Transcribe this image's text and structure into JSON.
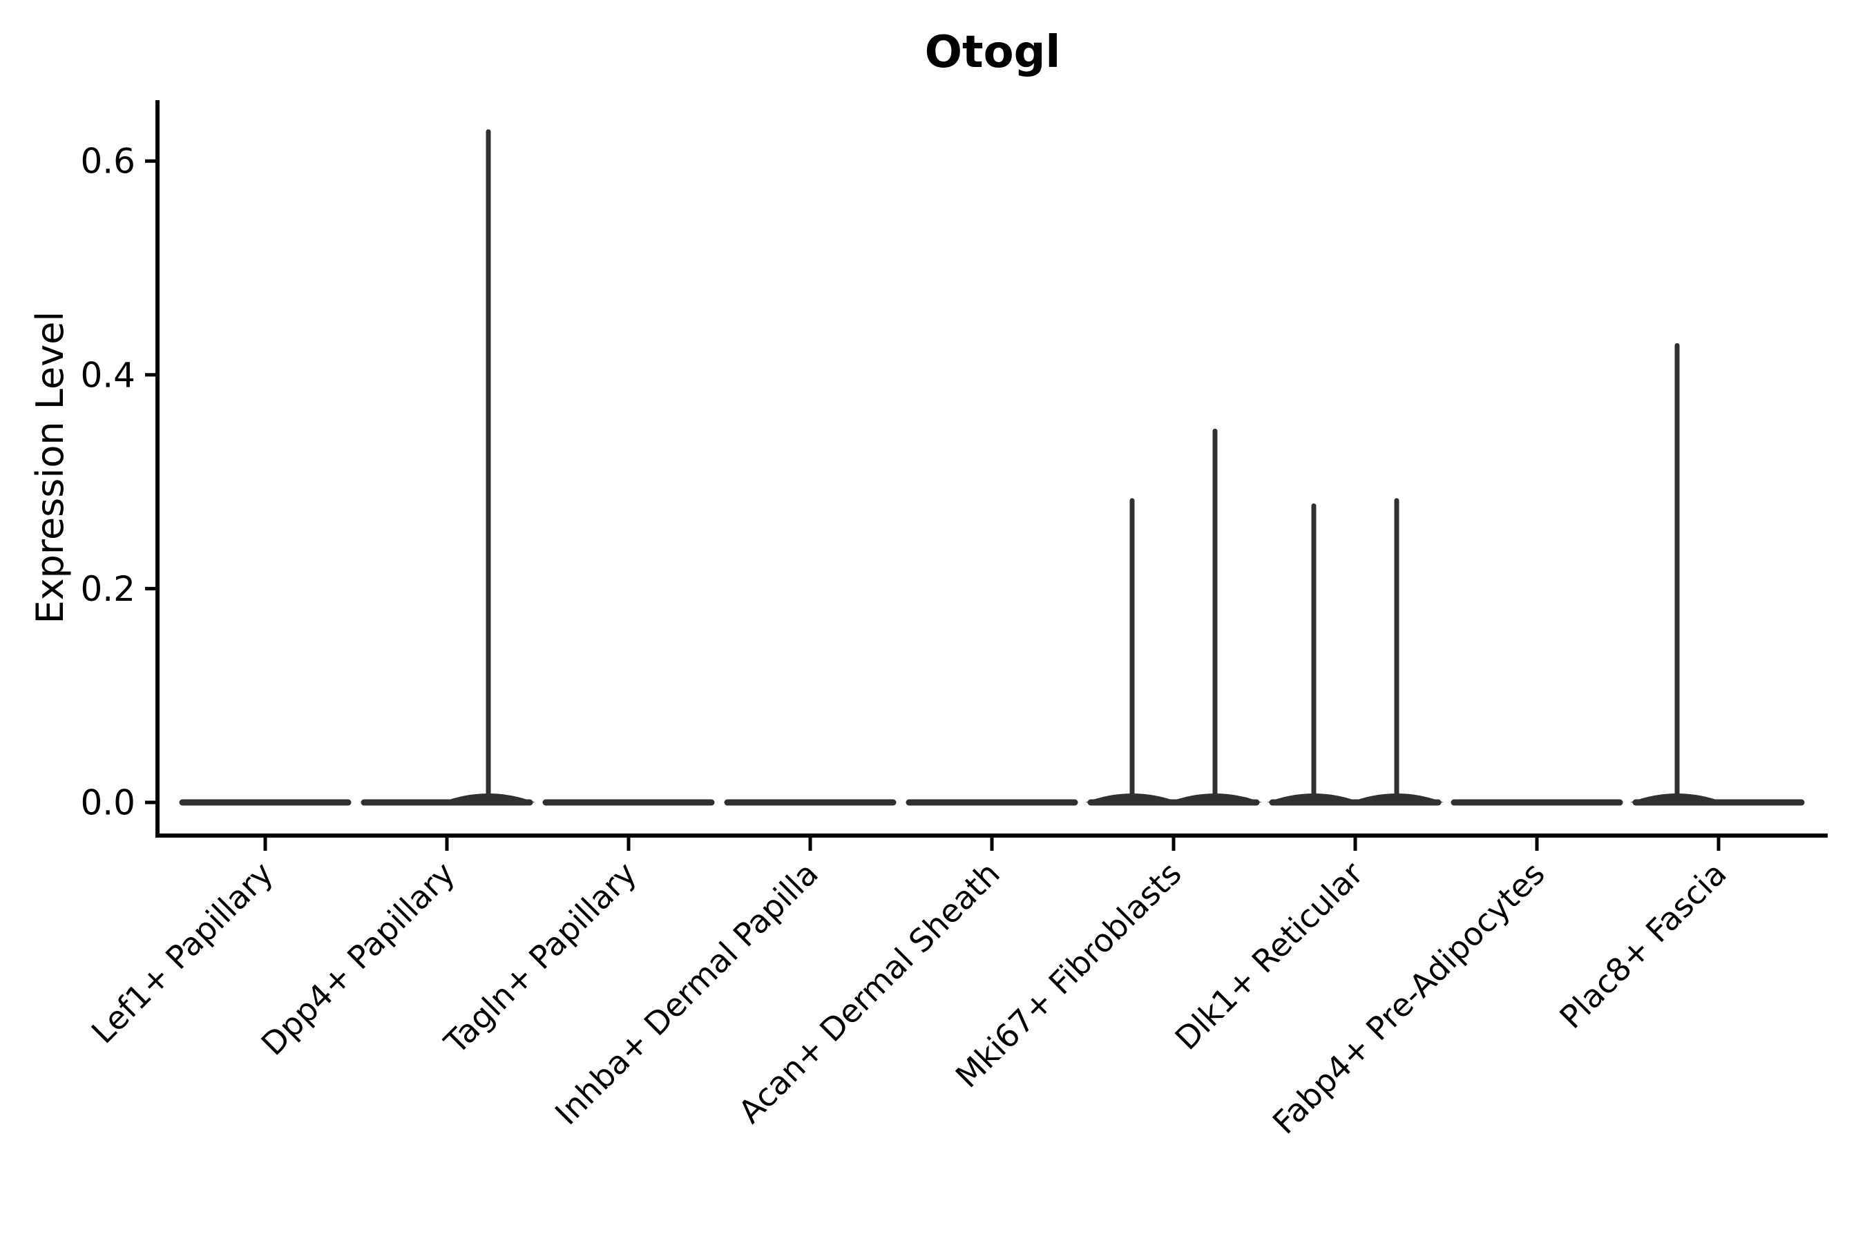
{
  "chart_data": {
    "type": "violin",
    "title": "Otogl",
    "ylabel": "Expression Level",
    "xlabel": "",
    "yticks": [
      0.0,
      0.2,
      0.4,
      0.6
    ],
    "ytick_labels": [
      "0.0",
      "0.2",
      "0.4",
      "0.6"
    ],
    "ylim": [
      -0.03,
      0.66
    ],
    "grid": false,
    "legend": "none",
    "categories": [
      "Lef1+ Papillary",
      "Dpp4+ Papillary",
      "Tagln+ Papillary",
      "Inhba+ Dermal Papilla",
      "Acan+ Dermal Sheath",
      "Mki67+ Fibroblasts",
      "Dlk1+ Reticular",
      "Fabp4+ Pre-Adipocytes",
      "Plac8+ Fascia"
    ],
    "violins": [
      {
        "category": "Lef1+ Papillary",
        "base_value": 0.0,
        "spikes": []
      },
      {
        "category": "Dpp4+ Papillary",
        "base_value": 0.0,
        "spikes": [
          {
            "side": "right",
            "max": 0.63
          }
        ]
      },
      {
        "category": "Tagln+ Papillary",
        "base_value": 0.0,
        "spikes": []
      },
      {
        "category": "Inhba+ Dermal Papilla",
        "base_value": 0.0,
        "spikes": []
      },
      {
        "category": "Acan+ Dermal Sheath",
        "base_value": 0.0,
        "spikes": []
      },
      {
        "category": "Mki67+ Fibroblasts",
        "base_value": 0.0,
        "spikes": [
          {
            "side": "left",
            "max": 0.285
          },
          {
            "side": "right",
            "max": 0.35
          }
        ]
      },
      {
        "category": "Dlk1+ Reticular",
        "base_value": 0.0,
        "spikes": [
          {
            "side": "left",
            "max": 0.28
          },
          {
            "side": "right",
            "max": 0.285
          }
        ]
      },
      {
        "category": "Fabp4+ Pre-Adipocytes",
        "base_value": 0.0,
        "spikes": []
      },
      {
        "category": "Plac8+ Fascia",
        "base_value": 0.0,
        "spikes": [
          {
            "side": "left",
            "max": 0.43
          }
        ]
      }
    ],
    "style": {
      "violin_color": "#303030",
      "axis_color": "#000000",
      "text_color": "#000000",
      "base_halfwidth_frac": 0.456,
      "spike_offset_frac": 0.227
    }
  }
}
